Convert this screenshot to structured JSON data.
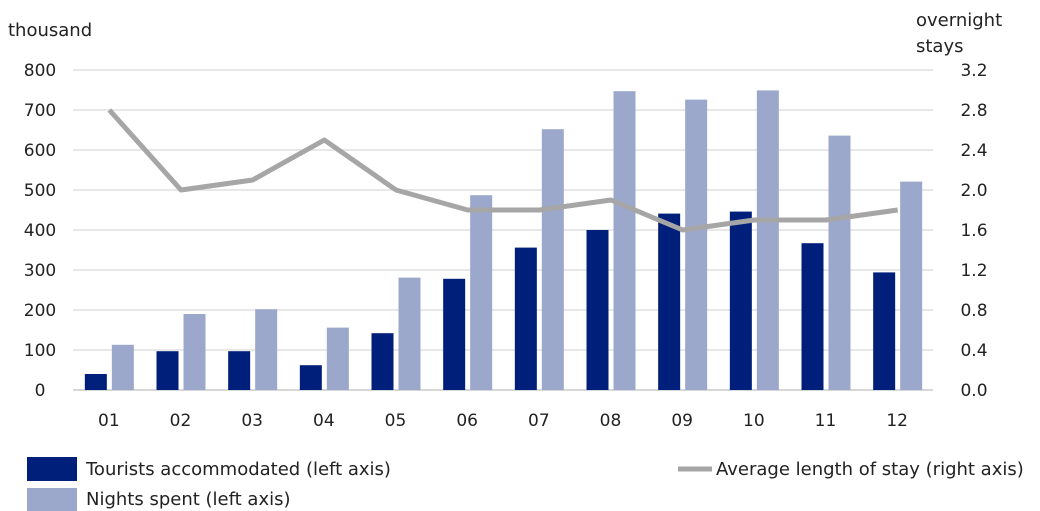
{
  "chart_data": {
    "type": "bar",
    "categories": [
      "01",
      "02",
      "03",
      "04",
      "05",
      "06",
      "07",
      "08",
      "09",
      "10",
      "11",
      "12"
    ],
    "series": [
      {
        "name": "Tourists accommodated (left axis)",
        "type": "bar",
        "axis": "left",
        "color": "#001F7A",
        "values": [
          40,
          97,
          97,
          62,
          142,
          278,
          356,
          400,
          441,
          446,
          367,
          294
        ]
      },
      {
        "name": "Nights spent (left axis)",
        "type": "bar",
        "axis": "left",
        "color": "#9BA8CC",
        "values": [
          113,
          190,
          202,
          156,
          281,
          487,
          652,
          747,
          726,
          749,
          636,
          521
        ]
      },
      {
        "name": "Average length of stay (right axis)",
        "type": "line",
        "axis": "right",
        "color": "#A6A6A6",
        "values": [
          2.8,
          2.0,
          2.1,
          2.5,
          2.0,
          1.8,
          1.8,
          1.9,
          1.6,
          1.7,
          1.7,
          1.8
        ]
      }
    ],
    "left_axis": {
      "label": "thousand",
      "ylim": [
        0,
        800
      ],
      "ticks": [
        "0",
        "100",
        "200",
        "300",
        "400",
        "500",
        "600",
        "700",
        "800"
      ]
    },
    "right_axis": {
      "label_lines": [
        "overnight",
        "stays"
      ],
      "ylim": [
        0,
        3.2
      ],
      "ticks": [
        "0.0",
        "0.4",
        "0.8",
        "1.2",
        "1.6",
        "2.0",
        "2.4",
        "2.8",
        "3.2"
      ]
    },
    "grid": true,
    "legend": "bottom"
  }
}
